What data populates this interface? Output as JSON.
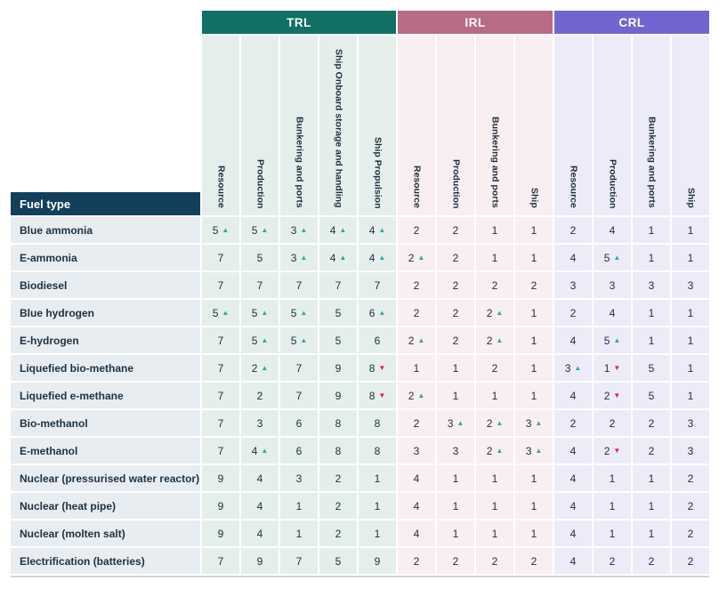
{
  "colors": {
    "trl_header": "#117063",
    "irl_header": "#b76b84",
    "crl_header": "#7166d0",
    "trl_tint": "#e4efec",
    "irl_tint": "#f9eef1",
    "crl_tint": "#ecebf7",
    "fuel_header_bg": "#123f5c",
    "fuel_cell_bg": "#e8edf2",
    "up_arrow": "#2cab9e",
    "down_arrow": "#e31b4c",
    "text": "#1c2f3e",
    "bottom_line": "#ccd5da"
  },
  "legend": {
    "up_symbol": "▲",
    "down_symbol": "▼"
  },
  "table": {
    "fuel_header": "Fuel type",
    "groups": [
      {
        "label": "TRL",
        "color_key": "trl_header",
        "tint_key": "trl_tint",
        "columns": [
          "Resource",
          "Production",
          "Bunkering and ports",
          "Ship Onboard storage and handling",
          "Ship Propulsion"
        ]
      },
      {
        "label": "IRL",
        "color_key": "irl_header",
        "tint_key": "irl_tint",
        "columns": [
          "Resource",
          "Production",
          "Bunkering and ports",
          "Ship"
        ]
      },
      {
        "label": "CRL",
        "color_key": "crl_header",
        "tint_key": "crl_tint",
        "columns": [
          "Resource",
          "Production",
          "Bunkering and ports",
          "Ship"
        ]
      }
    ],
    "rows": [
      {
        "fuel": "Blue ammonia",
        "cells": [
          [
            "5",
            "up"
          ],
          [
            "5",
            "up"
          ],
          [
            "3",
            "up"
          ],
          [
            "4",
            "up"
          ],
          [
            "4",
            "up"
          ],
          [
            "2",
            ""
          ],
          [
            "2",
            ""
          ],
          [
            "1",
            ""
          ],
          [
            "1",
            ""
          ],
          [
            "2",
            ""
          ],
          [
            "4",
            ""
          ],
          [
            "1",
            ""
          ],
          [
            "1",
            ""
          ]
        ]
      },
      {
        "fuel": "E-ammonia",
        "cells": [
          [
            "7",
            ""
          ],
          [
            "5",
            ""
          ],
          [
            "3",
            "up"
          ],
          [
            "4",
            "up"
          ],
          [
            "4",
            "up"
          ],
          [
            "2",
            "up"
          ],
          [
            "2",
            ""
          ],
          [
            "1",
            ""
          ],
          [
            "1",
            ""
          ],
          [
            "4",
            ""
          ],
          [
            "5",
            "up"
          ],
          [
            "1",
            ""
          ],
          [
            "1",
            ""
          ]
        ]
      },
      {
        "fuel": "Biodiesel",
        "cells": [
          [
            "7",
            ""
          ],
          [
            "7",
            ""
          ],
          [
            "7",
            ""
          ],
          [
            "7",
            ""
          ],
          [
            "7",
            ""
          ],
          [
            "2",
            ""
          ],
          [
            "2",
            ""
          ],
          [
            "2",
            ""
          ],
          [
            "2",
            ""
          ],
          [
            "3",
            ""
          ],
          [
            "3",
            ""
          ],
          [
            "3",
            ""
          ],
          [
            "3",
            ""
          ]
        ]
      },
      {
        "fuel": "Blue hydrogen",
        "cells": [
          [
            "5",
            "up"
          ],
          [
            "5",
            "up"
          ],
          [
            "5",
            "up"
          ],
          [
            "5",
            ""
          ],
          [
            "6",
            "up"
          ],
          [
            "2",
            ""
          ],
          [
            "2",
            ""
          ],
          [
            "2",
            "up"
          ],
          [
            "1",
            ""
          ],
          [
            "2",
            ""
          ],
          [
            "4",
            ""
          ],
          [
            "1",
            ""
          ],
          [
            "1",
            ""
          ]
        ]
      },
      {
        "fuel": "E-hydrogen",
        "cells": [
          [
            "7",
            ""
          ],
          [
            "5",
            "up"
          ],
          [
            "5",
            "up"
          ],
          [
            "5",
            ""
          ],
          [
            "6",
            ""
          ],
          [
            "2",
            "up"
          ],
          [
            "2",
            ""
          ],
          [
            "2",
            "up"
          ],
          [
            "1",
            ""
          ],
          [
            "4",
            ""
          ],
          [
            "5",
            "up"
          ],
          [
            "1",
            ""
          ],
          [
            "1",
            ""
          ]
        ]
      },
      {
        "fuel": "Liquefied  bio-methane",
        "cells": [
          [
            "7",
            ""
          ],
          [
            "2",
            "up"
          ],
          [
            "7",
            ""
          ],
          [
            "9",
            ""
          ],
          [
            "8",
            "down"
          ],
          [
            "1",
            ""
          ],
          [
            "1",
            ""
          ],
          [
            "2",
            ""
          ],
          [
            "1",
            ""
          ],
          [
            "3",
            "up"
          ],
          [
            "1",
            "down"
          ],
          [
            "5",
            ""
          ],
          [
            "1",
            ""
          ]
        ]
      },
      {
        "fuel": "Liquefied  e-methane",
        "cells": [
          [
            "7",
            ""
          ],
          [
            "2",
            ""
          ],
          [
            "7",
            ""
          ],
          [
            "9",
            ""
          ],
          [
            "8",
            "down"
          ],
          [
            "2",
            "up"
          ],
          [
            "1",
            ""
          ],
          [
            "1",
            ""
          ],
          [
            "1",
            ""
          ],
          [
            "4",
            ""
          ],
          [
            "2",
            "down"
          ],
          [
            "5",
            ""
          ],
          [
            "1",
            ""
          ]
        ]
      },
      {
        "fuel": "Bio-methanol",
        "cells": [
          [
            "7",
            ""
          ],
          [
            "3",
            ""
          ],
          [
            "6",
            ""
          ],
          [
            "8",
            ""
          ],
          [
            "8",
            ""
          ],
          [
            "2",
            ""
          ],
          [
            "3",
            "up"
          ],
          [
            "2",
            "up"
          ],
          [
            "3",
            "up"
          ],
          [
            "2",
            ""
          ],
          [
            "2",
            ""
          ],
          [
            "2",
            ""
          ],
          [
            "3",
            ""
          ]
        ]
      },
      {
        "fuel": "E-methanol",
        "cells": [
          [
            "7",
            ""
          ],
          [
            "4",
            "up"
          ],
          [
            "6",
            ""
          ],
          [
            "8",
            ""
          ],
          [
            "8",
            ""
          ],
          [
            "3",
            ""
          ],
          [
            "3",
            ""
          ],
          [
            "2",
            "up"
          ],
          [
            "3",
            "up"
          ],
          [
            "4",
            ""
          ],
          [
            "2",
            "down"
          ],
          [
            "2",
            ""
          ],
          [
            "3",
            ""
          ]
        ]
      },
      {
        "fuel": "Nuclear (pressurised water reactor)",
        "cells": [
          [
            "9",
            ""
          ],
          [
            "4",
            ""
          ],
          [
            "3",
            ""
          ],
          [
            "2",
            ""
          ],
          [
            "1",
            ""
          ],
          [
            "4",
            ""
          ],
          [
            "1",
            ""
          ],
          [
            "1",
            ""
          ],
          [
            "1",
            ""
          ],
          [
            "4",
            ""
          ],
          [
            "1",
            ""
          ],
          [
            "1",
            ""
          ],
          [
            "2",
            ""
          ]
        ]
      },
      {
        "fuel": "Nuclear (heat pipe)",
        "cells": [
          [
            "9",
            ""
          ],
          [
            "4",
            ""
          ],
          [
            "1",
            ""
          ],
          [
            "2",
            ""
          ],
          [
            "1",
            ""
          ],
          [
            "4",
            ""
          ],
          [
            "1",
            ""
          ],
          [
            "1",
            ""
          ],
          [
            "1",
            ""
          ],
          [
            "4",
            ""
          ],
          [
            "1",
            ""
          ],
          [
            "1",
            ""
          ],
          [
            "2",
            ""
          ]
        ]
      },
      {
        "fuel": "Nuclear (molten salt)",
        "cells": [
          [
            "9",
            ""
          ],
          [
            "4",
            ""
          ],
          [
            "1",
            ""
          ],
          [
            "2",
            ""
          ],
          [
            "1",
            ""
          ],
          [
            "4",
            ""
          ],
          [
            "1",
            ""
          ],
          [
            "1",
            ""
          ],
          [
            "1",
            ""
          ],
          [
            "4",
            ""
          ],
          [
            "1",
            ""
          ],
          [
            "1",
            ""
          ],
          [
            "2",
            ""
          ]
        ]
      },
      {
        "fuel": "Electrification (batteries)",
        "cells": [
          [
            "7",
            ""
          ],
          [
            "9",
            ""
          ],
          [
            "7",
            ""
          ],
          [
            "5",
            ""
          ],
          [
            "9",
            ""
          ],
          [
            "2",
            ""
          ],
          [
            "2",
            ""
          ],
          [
            "2",
            ""
          ],
          [
            "2",
            ""
          ],
          [
            "4",
            ""
          ],
          [
            "2",
            ""
          ],
          [
            "2",
            ""
          ],
          [
            "2",
            ""
          ]
        ]
      }
    ]
  }
}
